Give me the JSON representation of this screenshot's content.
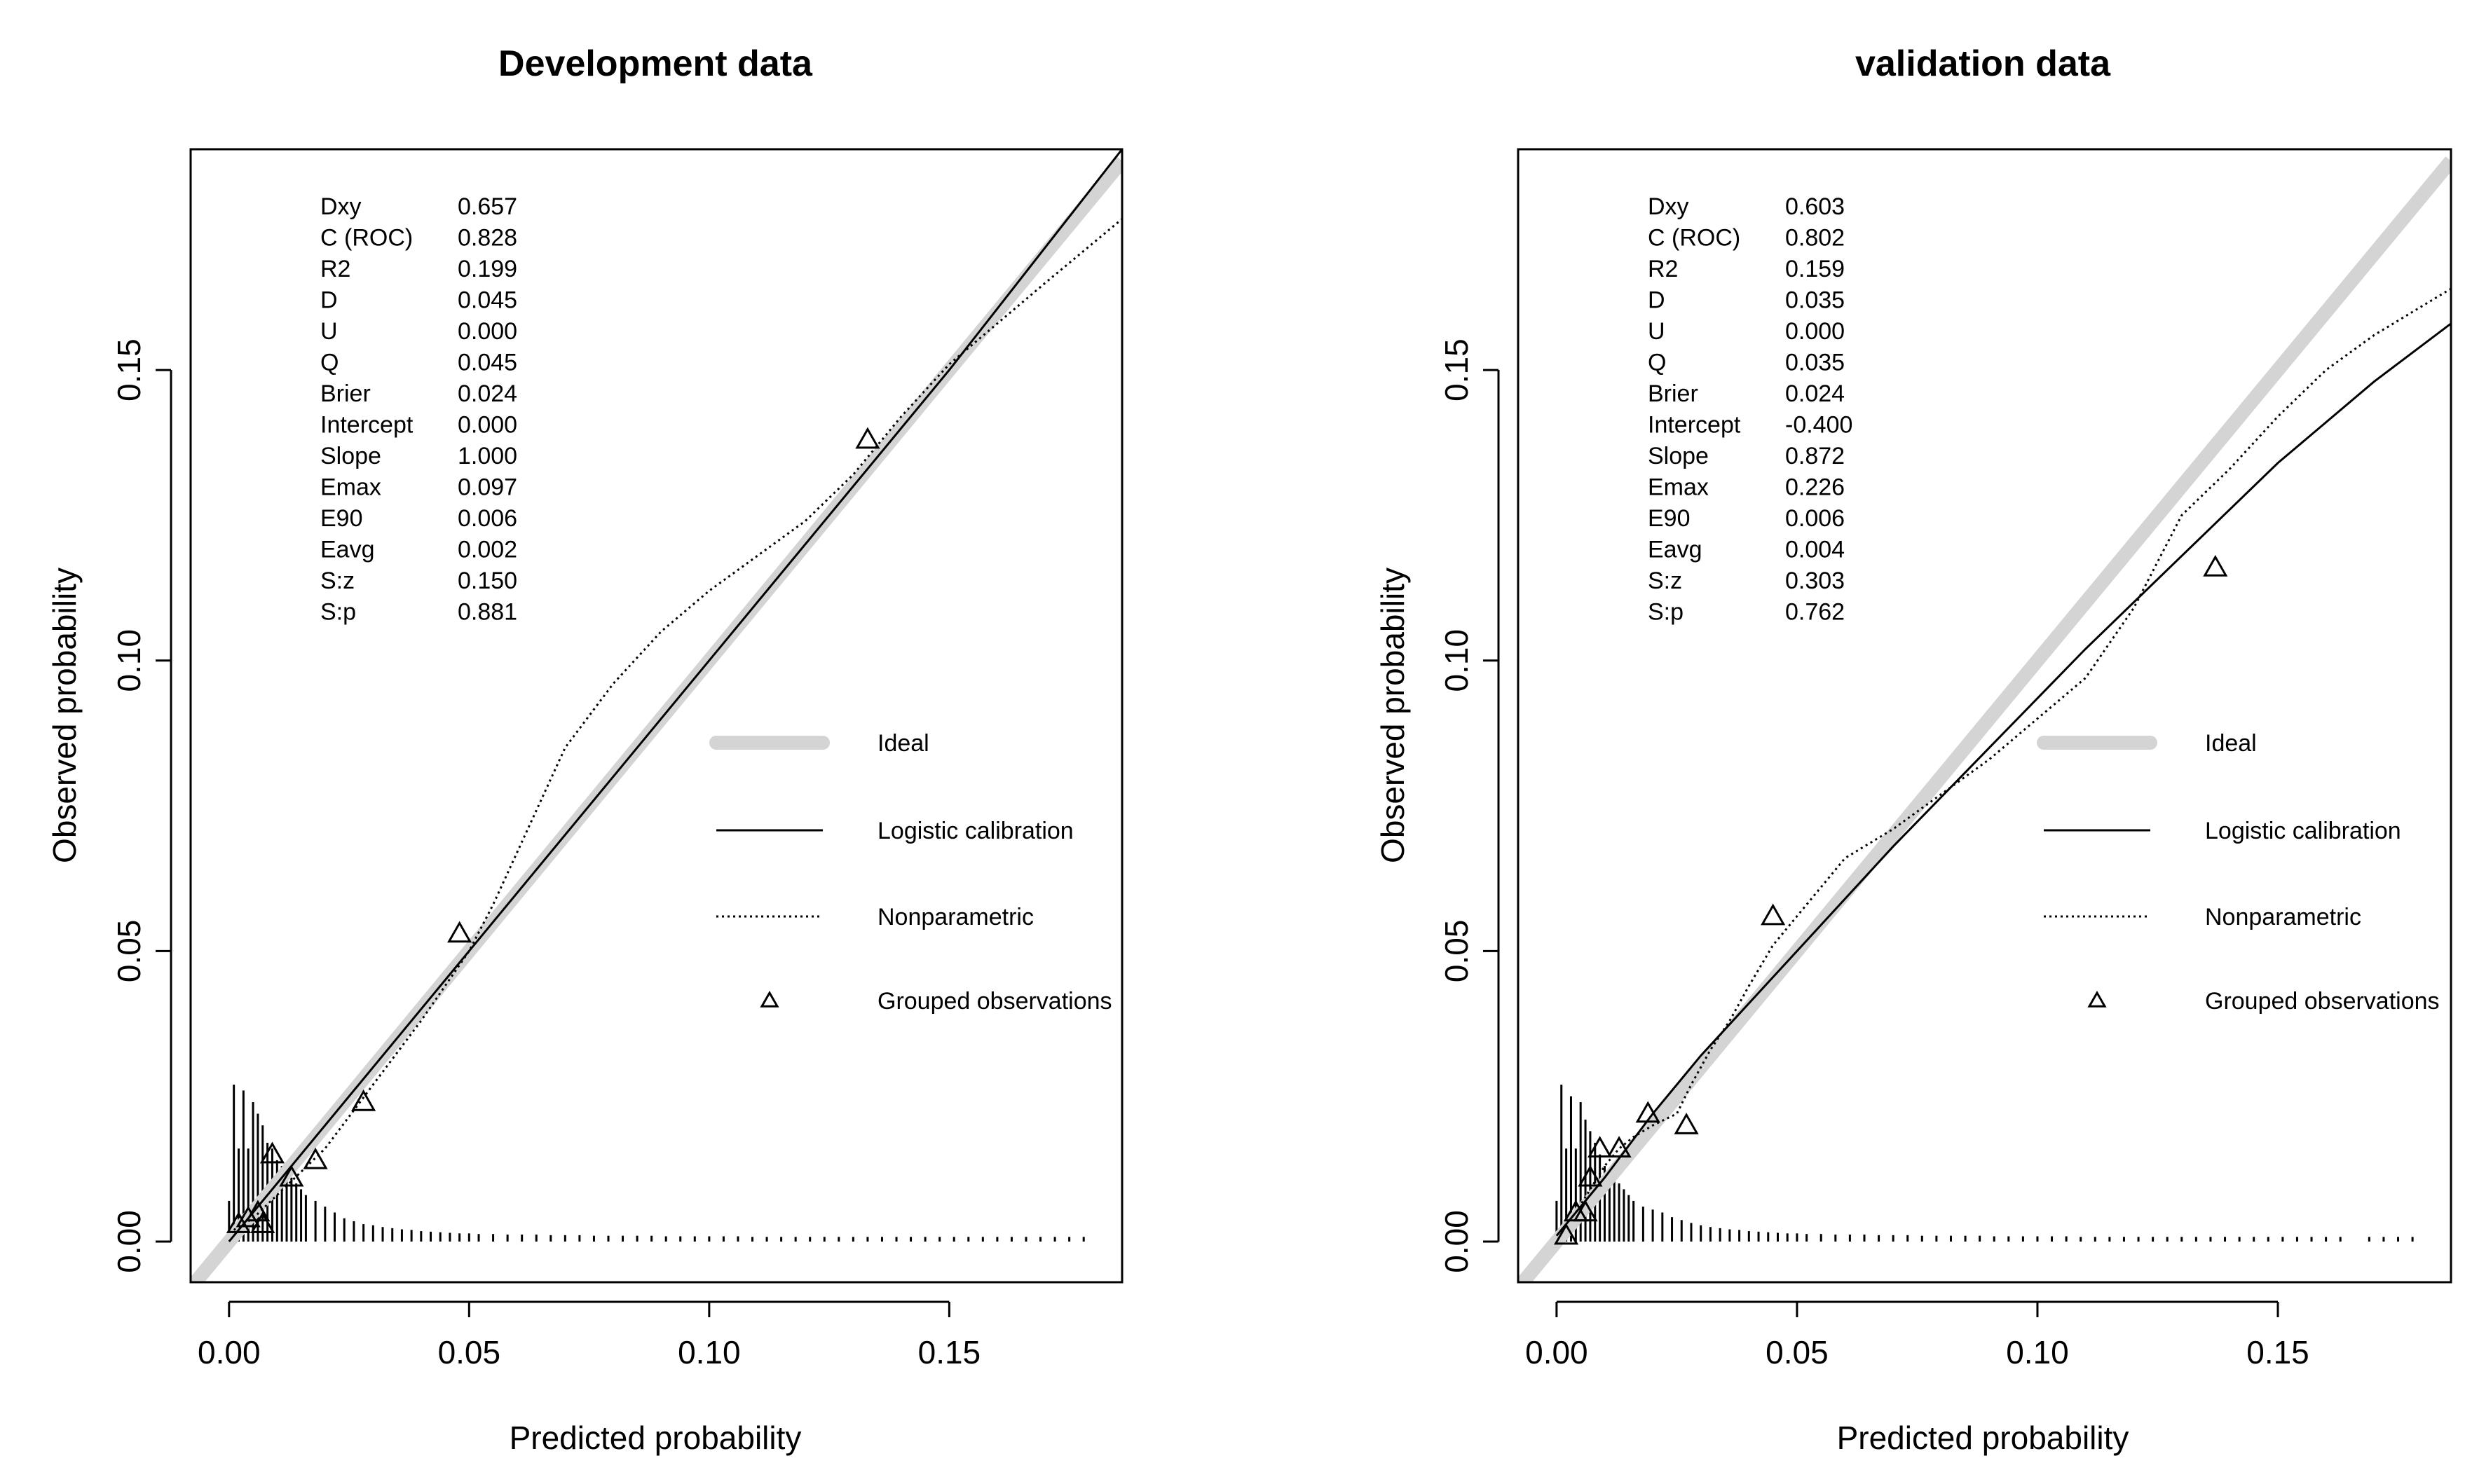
{
  "chart_data": [
    {
      "type": "line",
      "title": "Development data",
      "xlabel": "Predicted probability",
      "ylabel": "Observed probability",
      "xlim": [
        -0.008,
        0.186
      ],
      "ylim": [
        -0.007,
        0.188
      ],
      "xticks": [
        0.0,
        0.05,
        0.1,
        0.15
      ],
      "xtick_labels": [
        "0.00",
        "0.05",
        "0.10",
        "0.15"
      ],
      "yticks": [
        0.0,
        0.05,
        0.1,
        0.15
      ],
      "ytick_labels": [
        "0.00",
        "0.05",
        "0.10",
        "0.15"
      ],
      "stats": [
        {
          "label": "Dxy",
          "value": "0.657"
        },
        {
          "label": "C (ROC)",
          "value": "0.828"
        },
        {
          "label": "R2",
          "value": "0.199"
        },
        {
          "label": "D",
          "value": "0.045"
        },
        {
          "label": "U",
          "value": "0.000"
        },
        {
          "label": "Q",
          "value": "0.045"
        },
        {
          "label": "Brier",
          "value": "0.024"
        },
        {
          "label": "Intercept",
          "value": "0.000"
        },
        {
          "label": "Slope",
          "value": "1.000"
        },
        {
          "label": "Emax",
          "value": "0.097"
        },
        {
          "label": "E90",
          "value": "0.006"
        },
        {
          "label": "Eavg",
          "value": "0.002"
        },
        {
          "label": "S:z",
          "value": "0.150"
        },
        {
          "label": "S:p",
          "value": "0.881"
        }
      ],
      "legend": [
        {
          "name": "Ideal",
          "style": "ideal"
        },
        {
          "name": "Logistic calibration",
          "style": "solid"
        },
        {
          "name": "Nonparametric",
          "style": "dotted"
        },
        {
          "name": "Grouped observations",
          "style": "triangle"
        }
      ],
      "series": [
        {
          "name": "Ideal",
          "style": "ideal",
          "x": [
            -0.008,
            0.186
          ],
          "y": [
            -0.008,
            0.186
          ]
        },
        {
          "name": "Logistic calibration",
          "style": "solid",
          "x": [
            0.0,
            0.05,
            0.1,
            0.15,
            0.186
          ],
          "y": [
            0.0,
            0.05,
            0.1,
            0.15,
            0.188
          ]
        },
        {
          "name": "Nonparametric",
          "style": "dotted",
          "x": [
            0.001,
            0.005,
            0.01,
            0.015,
            0.02,
            0.03,
            0.04,
            0.05,
            0.055,
            0.06,
            0.065,
            0.07,
            0.08,
            0.09,
            0.1,
            0.11,
            0.12,
            0.13,
            0.14,
            0.15,
            0.16,
            0.17,
            0.186
          ],
          "y": [
            0.002,
            0.004,
            0.008,
            0.012,
            0.016,
            0.027,
            0.038,
            0.05,
            0.058,
            0.067,
            0.076,
            0.085,
            0.096,
            0.105,
            0.112,
            0.118,
            0.124,
            0.132,
            0.142,
            0.151,
            0.158,
            0.165,
            0.176
          ]
        },
        {
          "name": "Grouped observations",
          "style": "triangle",
          "x": [
            0.002,
            0.004,
            0.006,
            0.007,
            0.009,
            0.013,
            0.018,
            0.028,
            0.048,
            0.133
          ],
          "y": [
            0.003,
            0.004,
            0.005,
            0.003,
            0.015,
            0.011,
            0.014,
            0.024,
            0.053,
            0.138
          ]
        }
      ],
      "histogram": {
        "x": [
          0.0,
          0.001,
          0.002,
          0.003,
          0.004,
          0.005,
          0.006,
          0.007,
          0.008,
          0.009,
          0.01,
          0.011,
          0.012,
          0.013,
          0.014,
          0.015,
          0.016,
          0.018,
          0.02,
          0.022,
          0.024,
          0.026,
          0.028,
          0.03,
          0.032,
          0.034,
          0.036,
          0.038,
          0.04,
          0.042,
          0.044,
          0.046,
          0.048,
          0.05,
          0.052,
          0.055,
          0.058,
          0.061,
          0.064,
          0.067,
          0.07,
          0.073,
          0.076,
          0.079,
          0.082,
          0.085,
          0.088,
          0.091,
          0.094,
          0.097,
          0.1,
          0.103,
          0.106,
          0.109,
          0.112,
          0.115,
          0.118,
          0.121,
          0.124,
          0.127,
          0.13,
          0.133,
          0.136,
          0.139,
          0.142,
          0.145,
          0.148,
          0.151,
          0.154,
          0.157,
          0.16,
          0.163,
          0.166,
          0.169,
          0.172,
          0.175,
          0.178
        ],
        "h": [
          0.007,
          0.027,
          0.016,
          0.026,
          0.016,
          0.024,
          0.022,
          0.02,
          0.017,
          0.016,
          0.014,
          0.013,
          0.012,
          0.011,
          0.01,
          0.009,
          0.008,
          0.007,
          0.006,
          0.005,
          0.004,
          0.0035,
          0.003,
          0.0028,
          0.0025,
          0.0023,
          0.0021,
          0.002,
          0.0018,
          0.0017,
          0.0016,
          0.0015,
          0.0014,
          0.0014,
          0.0013,
          0.0013,
          0.0012,
          0.0012,
          0.0012,
          0.0011,
          0.0011,
          0.0011,
          0.001,
          0.001,
          0.001,
          0.001,
          0.001,
          0.0009,
          0.0009,
          0.0009,
          0.0009,
          0.0009,
          0.0009,
          0.0008,
          0.0008,
          0.0008,
          0.0008,
          0.0008,
          0.0008,
          0.0008,
          0.0008,
          0.0008,
          0.0008,
          0.0008,
          0.0008,
          0.0008,
          0.0008,
          0.0008,
          0.0008,
          0.0008,
          0.0008,
          0.0008,
          0.0008,
          0.0008,
          0.0008,
          0.0008,
          0.0008
        ]
      }
    },
    {
      "type": "line",
      "title": "validation data",
      "xlabel": "Predicted probability",
      "ylabel": "Observed probability",
      "xlim": [
        -0.008,
        0.186
      ],
      "ylim": [
        -0.007,
        0.188
      ],
      "xticks": [
        0.0,
        0.05,
        0.1,
        0.15
      ],
      "xtick_labels": [
        "0.00",
        "0.05",
        "0.10",
        "0.15"
      ],
      "yticks": [
        0.0,
        0.05,
        0.1,
        0.15
      ],
      "ytick_labels": [
        "0.00",
        "0.05",
        "0.10",
        "0.15"
      ],
      "stats": [
        {
          "label": "Dxy",
          "value": "0.603"
        },
        {
          "label": "C (ROC)",
          "value": "0.802"
        },
        {
          "label": "R2",
          "value": "0.159"
        },
        {
          "label": "D",
          "value": "0.035"
        },
        {
          "label": "U",
          "value": "0.000"
        },
        {
          "label": "Q",
          "value": "0.035"
        },
        {
          "label": "Brier",
          "value": "0.024"
        },
        {
          "label": "Intercept",
          "value": "-0.400"
        },
        {
          "label": "Slope",
          "value": "0.872"
        },
        {
          "label": "Emax",
          "value": "0.226"
        },
        {
          "label": "E90",
          "value": "0.006"
        },
        {
          "label": "Eavg",
          "value": "0.004"
        },
        {
          "label": "S:z",
          "value": "0.303"
        },
        {
          "label": "S:p",
          "value": "0.762"
        }
      ],
      "legend": [
        {
          "name": "Ideal",
          "style": "ideal"
        },
        {
          "name": "Logistic calibration",
          "style": "solid"
        },
        {
          "name": "Nonparametric",
          "style": "dotted"
        },
        {
          "name": "Grouped observations",
          "style": "triangle"
        }
      ],
      "series": [
        {
          "name": "Ideal",
          "style": "ideal",
          "x": [
            -0.008,
            0.186
          ],
          "y": [
            -0.008,
            0.186
          ]
        },
        {
          "name": "Logistic calibration",
          "style": "solid",
          "x": [
            0.0,
            0.01,
            0.02,
            0.03,
            0.05,
            0.07,
            0.09,
            0.11,
            0.13,
            0.15,
            0.17,
            0.186
          ],
          "y": [
            0.001,
            0.011,
            0.022,
            0.032,
            0.05,
            0.068,
            0.085,
            0.102,
            0.118,
            0.134,
            0.148,
            0.158
          ]
        },
        {
          "name": "Nonparametric",
          "style": "dotted",
          "x": [
            0.001,
            0.004,
            0.007,
            0.01,
            0.013,
            0.016,
            0.02,
            0.025,
            0.028,
            0.032,
            0.036,
            0.04,
            0.045,
            0.05,
            0.055,
            0.06,
            0.07,
            0.08,
            0.09,
            0.1,
            0.11,
            0.12,
            0.13,
            0.14,
            0.15,
            0.16,
            0.17,
            0.186
          ],
          "y": [
            0.002,
            0.005,
            0.009,
            0.013,
            0.016,
            0.018,
            0.02,
            0.022,
            0.027,
            0.033,
            0.038,
            0.044,
            0.051,
            0.056,
            0.061,
            0.066,
            0.071,
            0.077,
            0.083,
            0.09,
            0.097,
            0.109,
            0.125,
            0.133,
            0.142,
            0.15,
            0.156,
            0.164
          ]
        },
        {
          "name": "Grouped observations",
          "style": "triangle",
          "x": [
            0.002,
            0.004,
            0.006,
            0.007,
            0.009,
            0.013,
            0.019,
            0.027,
            0.045,
            0.137
          ],
          "y": [
            0.001,
            0.005,
            0.005,
            0.011,
            0.016,
            0.016,
            0.022,
            0.02,
            0.056,
            0.116
          ]
        }
      ],
      "histogram": {
        "x": [
          0.0,
          0.001,
          0.002,
          0.003,
          0.004,
          0.005,
          0.006,
          0.007,
          0.008,
          0.009,
          0.01,
          0.011,
          0.012,
          0.013,
          0.014,
          0.015,
          0.016,
          0.018,
          0.02,
          0.022,
          0.024,
          0.026,
          0.028,
          0.03,
          0.032,
          0.034,
          0.036,
          0.038,
          0.04,
          0.042,
          0.044,
          0.046,
          0.048,
          0.05,
          0.052,
          0.055,
          0.058,
          0.061,
          0.064,
          0.067,
          0.07,
          0.073,
          0.076,
          0.079,
          0.082,
          0.085,
          0.088,
          0.091,
          0.094,
          0.097,
          0.1,
          0.103,
          0.106,
          0.109,
          0.112,
          0.115,
          0.118,
          0.121,
          0.124,
          0.127,
          0.13,
          0.133,
          0.136,
          0.139,
          0.142,
          0.145,
          0.148,
          0.151,
          0.154,
          0.157,
          0.16,
          0.163,
          0.169,
          0.172,
          0.175,
          0.178
        ],
        "h": [
          0.007,
          0.027,
          0.016,
          0.025,
          0.016,
          0.024,
          0.021,
          0.019,
          0.017,
          0.015,
          0.013,
          0.012,
          0.011,
          0.01,
          0.009,
          0.008,
          0.007,
          0.006,
          0.0055,
          0.005,
          0.0042,
          0.0037,
          0.0032,
          0.0028,
          0.0025,
          0.0023,
          0.0021,
          0.002,
          0.0018,
          0.0017,
          0.0016,
          0.0015,
          0.0014,
          0.0014,
          0.0013,
          0.0013,
          0.0012,
          0.0012,
          0.0012,
          0.0011,
          0.0011,
          0.0011,
          0.001,
          0.001,
          0.001,
          0.001,
          0.001,
          0.0009,
          0.0009,
          0.0009,
          0.0009,
          0.0009,
          0.0009,
          0.0008,
          0.0008,
          0.0008,
          0.0008,
          0.0008,
          0.0008,
          0.0008,
          0.0008,
          0.0008,
          0.0008,
          0.0008,
          0.0008,
          0.0008,
          0.0008,
          0.0008,
          0.0008,
          0.0008,
          0.0008,
          0.0008,
          0.0008,
          0.0008,
          0.0008,
          0.0008
        ]
      }
    }
  ]
}
